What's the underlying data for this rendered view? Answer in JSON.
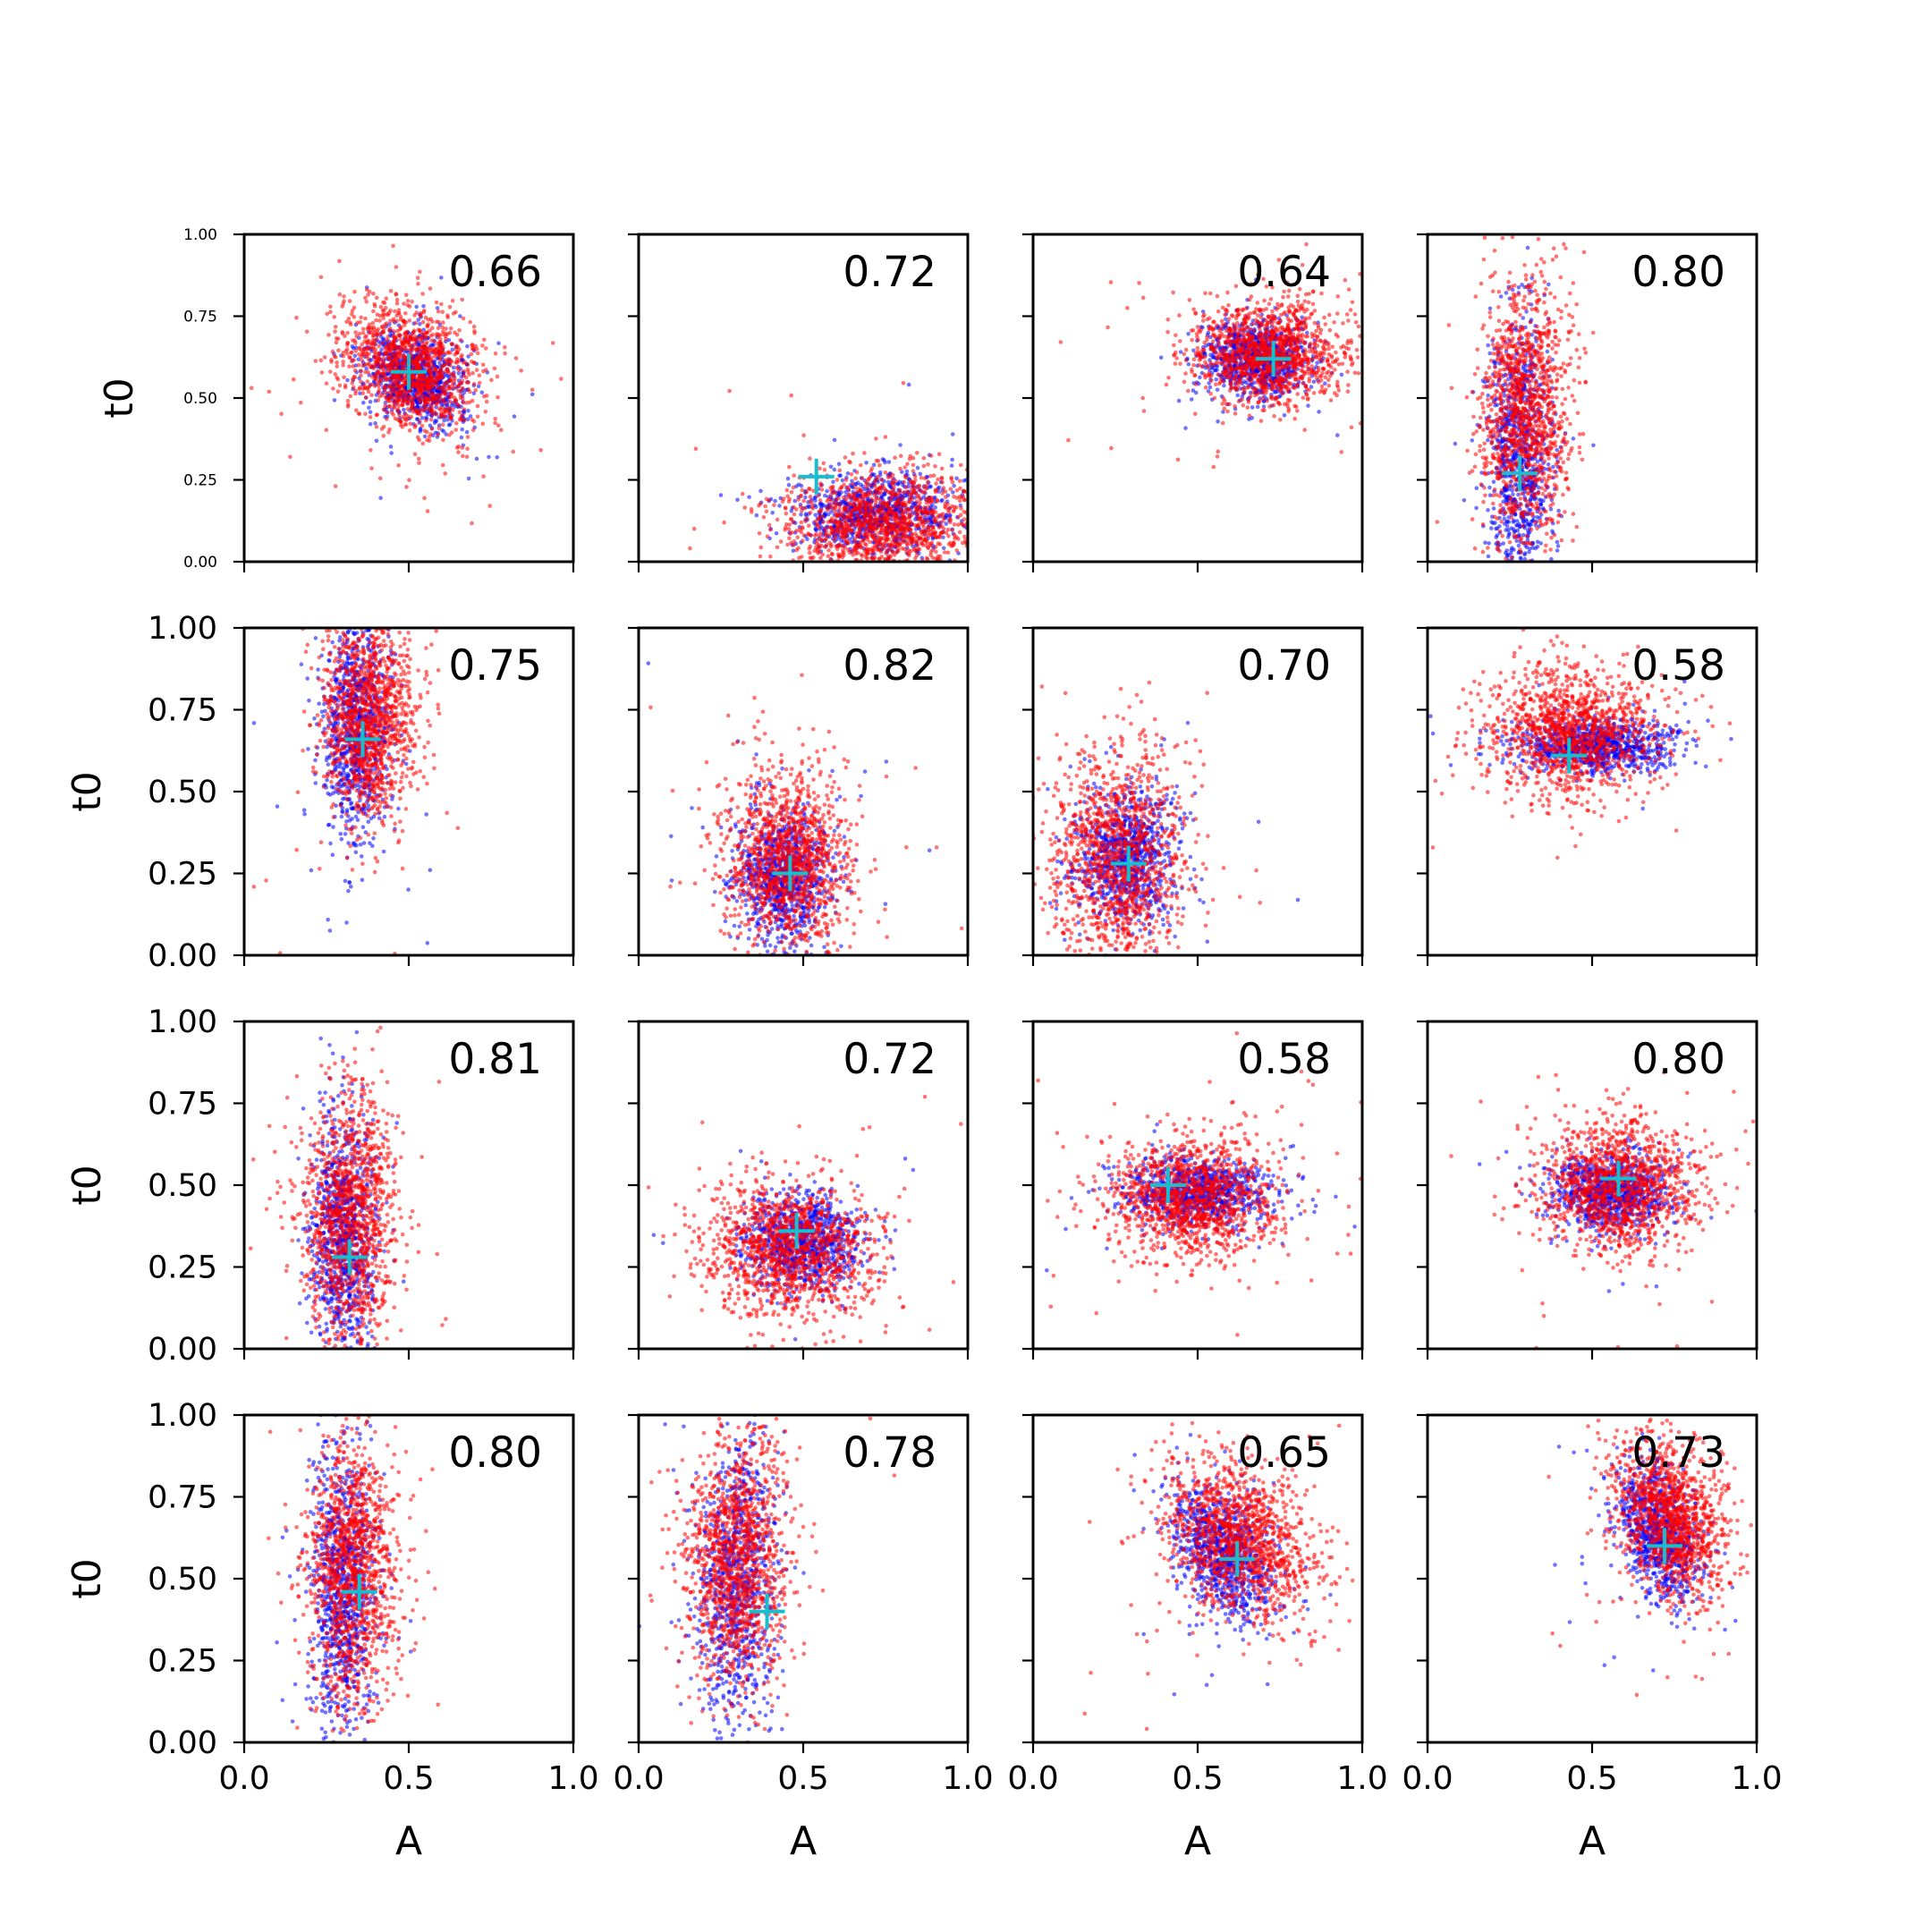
{
  "chart_data": {
    "type": "scatter",
    "layout": "4x4 grid of subplots",
    "xlabel": "A",
    "ylabel": "t0",
    "xlim": [
      0,
      1
    ],
    "ylim": [
      0,
      1
    ],
    "xticks": [
      "0.0",
      "0.5",
      "1.0"
    ],
    "yticks": [
      "0.00",
      "0.25",
      "0.50",
      "0.75",
      "1.00"
    ],
    "series_colors": {
      "blue": "#0000ff",
      "red": "#ff0000",
      "marker": "#17becf"
    },
    "panels": [
      {
        "label": "0.66",
        "marker": [
          0.5,
          0.58
        ],
        "blue": {
          "cx": 0.52,
          "cy": 0.56,
          "sx": 0.07,
          "sy": 0.07,
          "skew": -0.25
        },
        "red": {
          "cx": 0.5,
          "cy": 0.6,
          "sx": 0.1,
          "sy": 0.1,
          "skew": -0.25
        }
      },
      {
        "label": "0.72",
        "marker": [
          0.54,
          0.26
        ],
        "blue": {
          "cx": 0.72,
          "cy": 0.15,
          "sx": 0.12,
          "sy": 0.06,
          "skew": 0.12
        },
        "red": {
          "cx": 0.74,
          "cy": 0.12,
          "sx": 0.15,
          "sy": 0.08,
          "skew": 0.12
        }
      },
      {
        "label": "0.64",
        "marker": [
          0.73,
          0.62
        ],
        "blue": {
          "cx": 0.68,
          "cy": 0.62,
          "sx": 0.08,
          "sy": 0.06,
          "skew": -0.1
        },
        "red": {
          "cx": 0.72,
          "cy": 0.64,
          "sx": 0.12,
          "sy": 0.08,
          "skew": -0.1
        }
      },
      {
        "label": "0.80",
        "marker": [
          0.28,
          0.27
        ],
        "blue": {
          "cx": 0.28,
          "cy": 0.32,
          "sx": 0.05,
          "sy": 0.22,
          "skew": 0
        },
        "red": {
          "cx": 0.3,
          "cy": 0.45,
          "sx": 0.07,
          "sy": 0.2,
          "skew": 0
        }
      },
      {
        "label": "0.75",
        "marker": [
          0.36,
          0.66
        ],
        "blue": {
          "cx": 0.34,
          "cy": 0.7,
          "sx": 0.05,
          "sy": 0.16,
          "skew": 0
        },
        "red": {
          "cx": 0.38,
          "cy": 0.72,
          "sx": 0.07,
          "sy": 0.15,
          "skew": 0
        }
      },
      {
        "label": "0.82",
        "marker": [
          0.46,
          0.25
        ],
        "blue": {
          "cx": 0.44,
          "cy": 0.24,
          "sx": 0.07,
          "sy": 0.1,
          "skew": 0
        },
        "red": {
          "cx": 0.45,
          "cy": 0.28,
          "sx": 0.1,
          "sy": 0.14,
          "skew": 0
        }
      },
      {
        "label": "0.70",
        "marker": [
          0.29,
          0.28
        ],
        "blue": {
          "cx": 0.28,
          "cy": 0.3,
          "sx": 0.08,
          "sy": 0.1,
          "skew": 0
        },
        "red": {
          "cx": 0.26,
          "cy": 0.3,
          "sx": 0.1,
          "sy": 0.18,
          "skew": 0
        }
      },
      {
        "label": "0.58",
        "marker": [
          0.43,
          0.61
        ],
        "blue": {
          "cx": 0.5,
          "cy": 0.64,
          "sx": 0.12,
          "sy": 0.04,
          "skew": 0
        },
        "red": {
          "cx": 0.44,
          "cy": 0.68,
          "sx": 0.13,
          "sy": 0.1,
          "skew": 0
        }
      },
      {
        "label": "0.81",
        "marker": [
          0.32,
          0.28
        ],
        "blue": {
          "cx": 0.3,
          "cy": 0.35,
          "sx": 0.05,
          "sy": 0.18,
          "skew": 0
        },
        "red": {
          "cx": 0.32,
          "cy": 0.4,
          "sx": 0.07,
          "sy": 0.2,
          "skew": 0
        }
      },
      {
        "label": "0.72",
        "marker": [
          0.48,
          0.36
        ],
        "blue": {
          "cx": 0.5,
          "cy": 0.33,
          "sx": 0.09,
          "sy": 0.07,
          "skew": 0
        },
        "red": {
          "cx": 0.46,
          "cy": 0.3,
          "sx": 0.13,
          "sy": 0.1,
          "skew": 0
        }
      },
      {
        "label": "0.58",
        "marker": [
          0.41,
          0.5
        ],
        "blue": {
          "cx": 0.5,
          "cy": 0.48,
          "sx": 0.11,
          "sy": 0.05,
          "skew": 0
        },
        "red": {
          "cx": 0.48,
          "cy": 0.46,
          "sx": 0.13,
          "sy": 0.09,
          "skew": 0
        }
      },
      {
        "label": "0.80",
        "marker": [
          0.58,
          0.52
        ],
        "blue": {
          "cx": 0.56,
          "cy": 0.48,
          "sx": 0.09,
          "sy": 0.06,
          "skew": 0
        },
        "red": {
          "cx": 0.58,
          "cy": 0.5,
          "sx": 0.12,
          "sy": 0.1,
          "skew": 0
        }
      },
      {
        "label": "0.80",
        "marker": [
          0.35,
          0.46
        ],
        "blue": {
          "cx": 0.3,
          "cy": 0.48,
          "sx": 0.05,
          "sy": 0.22,
          "skew": 0
        },
        "red": {
          "cx": 0.33,
          "cy": 0.52,
          "sx": 0.07,
          "sy": 0.2,
          "skew": 0
        }
      },
      {
        "label": "0.78",
        "marker": [
          0.39,
          0.4
        ],
        "blue": {
          "cx": 0.3,
          "cy": 0.5,
          "sx": 0.06,
          "sy": 0.22,
          "skew": 0
        },
        "red": {
          "cx": 0.3,
          "cy": 0.55,
          "sx": 0.08,
          "sy": 0.2,
          "skew": 0
        }
      },
      {
        "label": "0.65",
        "marker": [
          0.62,
          0.56
        ],
        "blue": {
          "cx": 0.58,
          "cy": 0.58,
          "sx": 0.07,
          "sy": 0.1,
          "skew": -0.3
        },
        "red": {
          "cx": 0.63,
          "cy": 0.62,
          "sx": 0.11,
          "sy": 0.12,
          "skew": -0.3
        }
      },
      {
        "label": "0.73",
        "marker": [
          0.72,
          0.6
        ],
        "blue": {
          "cx": 0.7,
          "cy": 0.64,
          "sx": 0.06,
          "sy": 0.1,
          "skew": -0.2
        },
        "red": {
          "cx": 0.74,
          "cy": 0.68,
          "sx": 0.08,
          "sy": 0.12,
          "skew": -0.2
        }
      }
    ]
  }
}
